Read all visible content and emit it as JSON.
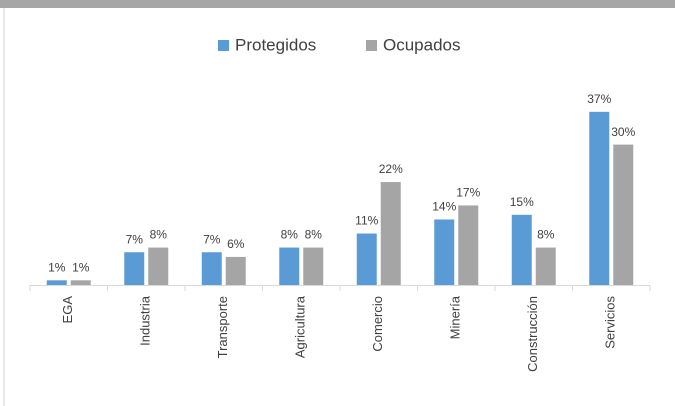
{
  "chart_data": {
    "type": "bar",
    "categories": [
      "EGA",
      "Industria",
      "Transporte",
      "Agricultura",
      "Comercio",
      "Minería",
      "Construcción",
      "Servicios"
    ],
    "series": [
      {
        "name": "Protegidos",
        "color": "#5b9bd5",
        "values": [
          1,
          7,
          7,
          8,
          11,
          14,
          15,
          37
        ],
        "value_labels": [
          "1%",
          "7%",
          "7%",
          "8%",
          "11%",
          "14%",
          "15%",
          "37%"
        ]
      },
      {
        "name": "Ocupados",
        "color": "#a5a5a5",
        "values": [
          1,
          8,
          6,
          8,
          22,
          17,
          8,
          30
        ],
        "value_labels": [
          "1%",
          "8%",
          "6%",
          "8%",
          "22%",
          "17%",
          "8%",
          "30%"
        ]
      }
    ],
    "legend": "top"
  }
}
